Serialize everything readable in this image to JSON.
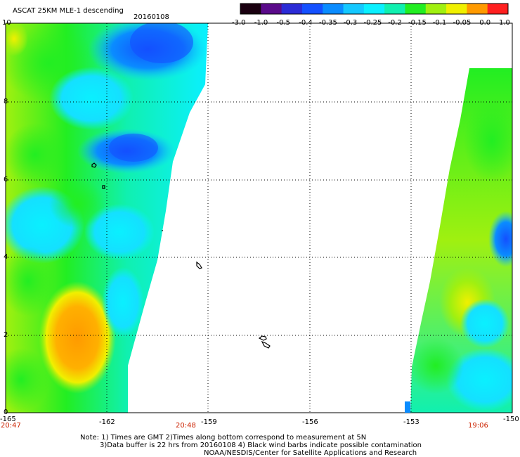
{
  "header": {
    "title": "ASCAT 25KM MLE-1 descending",
    "date": "20160108"
  },
  "colorbar": {
    "labels": [
      "-3.0",
      "-1.0",
      "-0.5",
      "-0.4",
      "-0.35",
      "-0.3",
      "-0.25",
      "-0.2",
      "-0.15",
      "-0.1",
      "-0.05",
      "0.0",
      "1.0"
    ],
    "colors": [
      "#1a0010",
      "#5a0a8a",
      "#2b2bd6",
      "#1450ff",
      "#0a8cff",
      "#14c8ff",
      "#0af0ff",
      "#10f0b0",
      "#22ee22",
      "#a0f010",
      "#f0f000",
      "#ff9a00",
      "#ff2020"
    ]
  },
  "map": {
    "lon_labels": [
      "-165",
      "-162",
      "-159",
      "-156",
      "-153",
      "-150"
    ],
    "lat_labels": [
      "0",
      "2",
      "4",
      "6",
      "8",
      "10"
    ],
    "time_labels": [
      "20:47",
      "20:48",
      "19:06"
    ],
    "lon_range": [
      -165,
      -150
    ],
    "lat_range": [
      0,
      10
    ],
    "grid_style": "dotted"
  },
  "notes": {
    "line1": "Note: 1) Times are GMT 2)Times along bottom correspond to measurement at 5N",
    "line2": "3)Data buffer is 22 hrs from 20160108 4) Black wind barbs indicate possible contamination",
    "line3": "NOAA/NESDIS/Center for Satellite Applications and Research"
  }
}
